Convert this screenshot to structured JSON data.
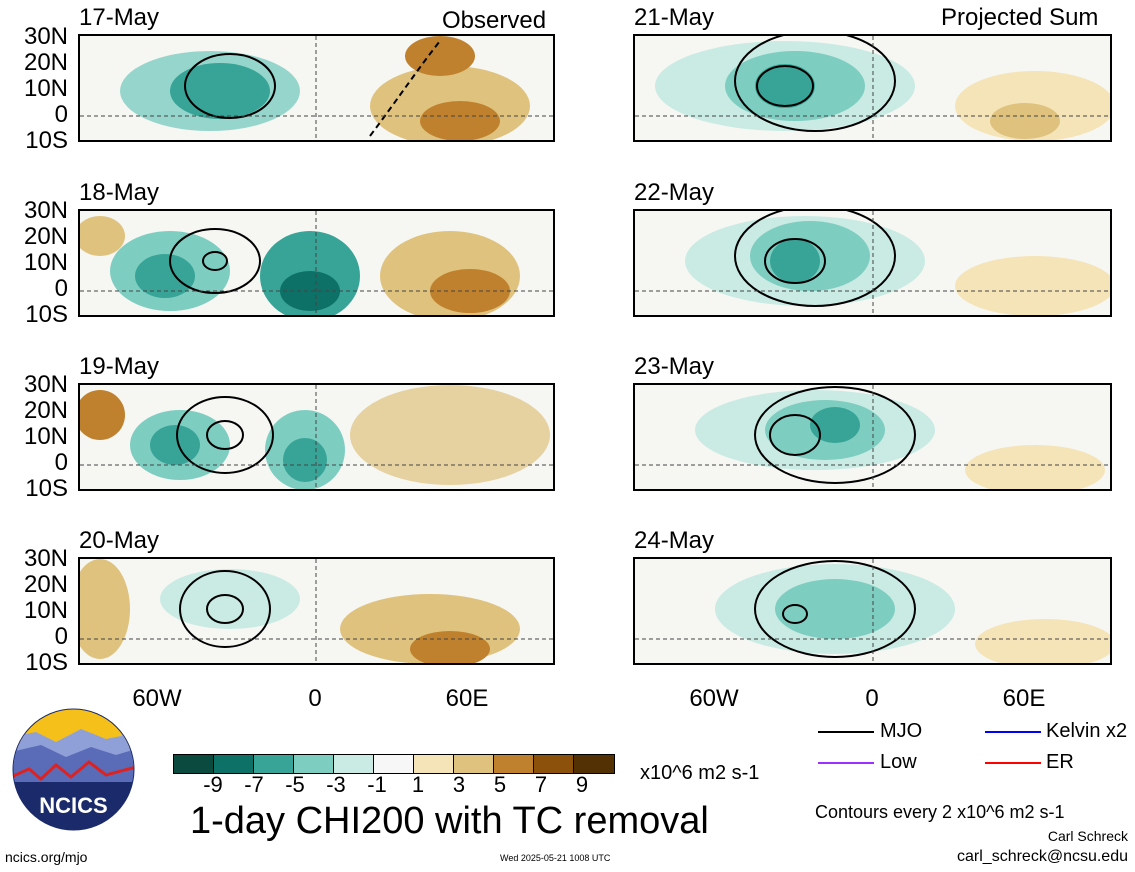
{
  "header": {
    "observed_label": "Observed",
    "projected_label": "Projected Sum"
  },
  "lat_labels": [
    "30N",
    "20N",
    "10N",
    "0",
    "10S"
  ],
  "lon_labels": [
    "60W",
    "0",
    "60E"
  ],
  "panels_left": [
    {
      "date": "17-May"
    },
    {
      "date": "18-May"
    },
    {
      "date": "19-May"
    },
    {
      "date": "20-May"
    }
  ],
  "panels_right": [
    {
      "date": "21-May"
    },
    {
      "date": "22-May"
    },
    {
      "date": "23-May"
    },
    {
      "date": "24-May"
    }
  ],
  "colorbar": {
    "colors": [
      "#0b4a3f",
      "#0e7167",
      "#37a497",
      "#7ecdc1",
      "#c9ebe4",
      "#f7f7f7",
      "#f5e4b8",
      "#dfc27d",
      "#bf812d",
      "#8c510a",
      "#543005"
    ],
    "tick_labels": [
      "-9",
      "-7",
      "-5",
      "-3",
      "-1",
      "1",
      "3",
      "5",
      "7",
      "9"
    ],
    "units": "x10^6 m2 s-1"
  },
  "title": "1-day CHI200 with TC removal",
  "legend": [
    {
      "label": "MJO",
      "color": "#000000"
    },
    {
      "label": "Kelvin x2",
      "color": "#0000ff"
    },
    {
      "label": "Low",
      "color": "#9b30ff"
    },
    {
      "label": "ER",
      "color": "#ff0000"
    }
  ],
  "contour_note": "Contours every 2 x10^6 m2 s-1",
  "author": "Carl Schreck",
  "email": "carl_schreck@ncsu.edu",
  "website": "ncics.org/mjo",
  "timestamp": "Wed 2025-05-21 1008 UTC",
  "logo_text": "NCICS"
}
